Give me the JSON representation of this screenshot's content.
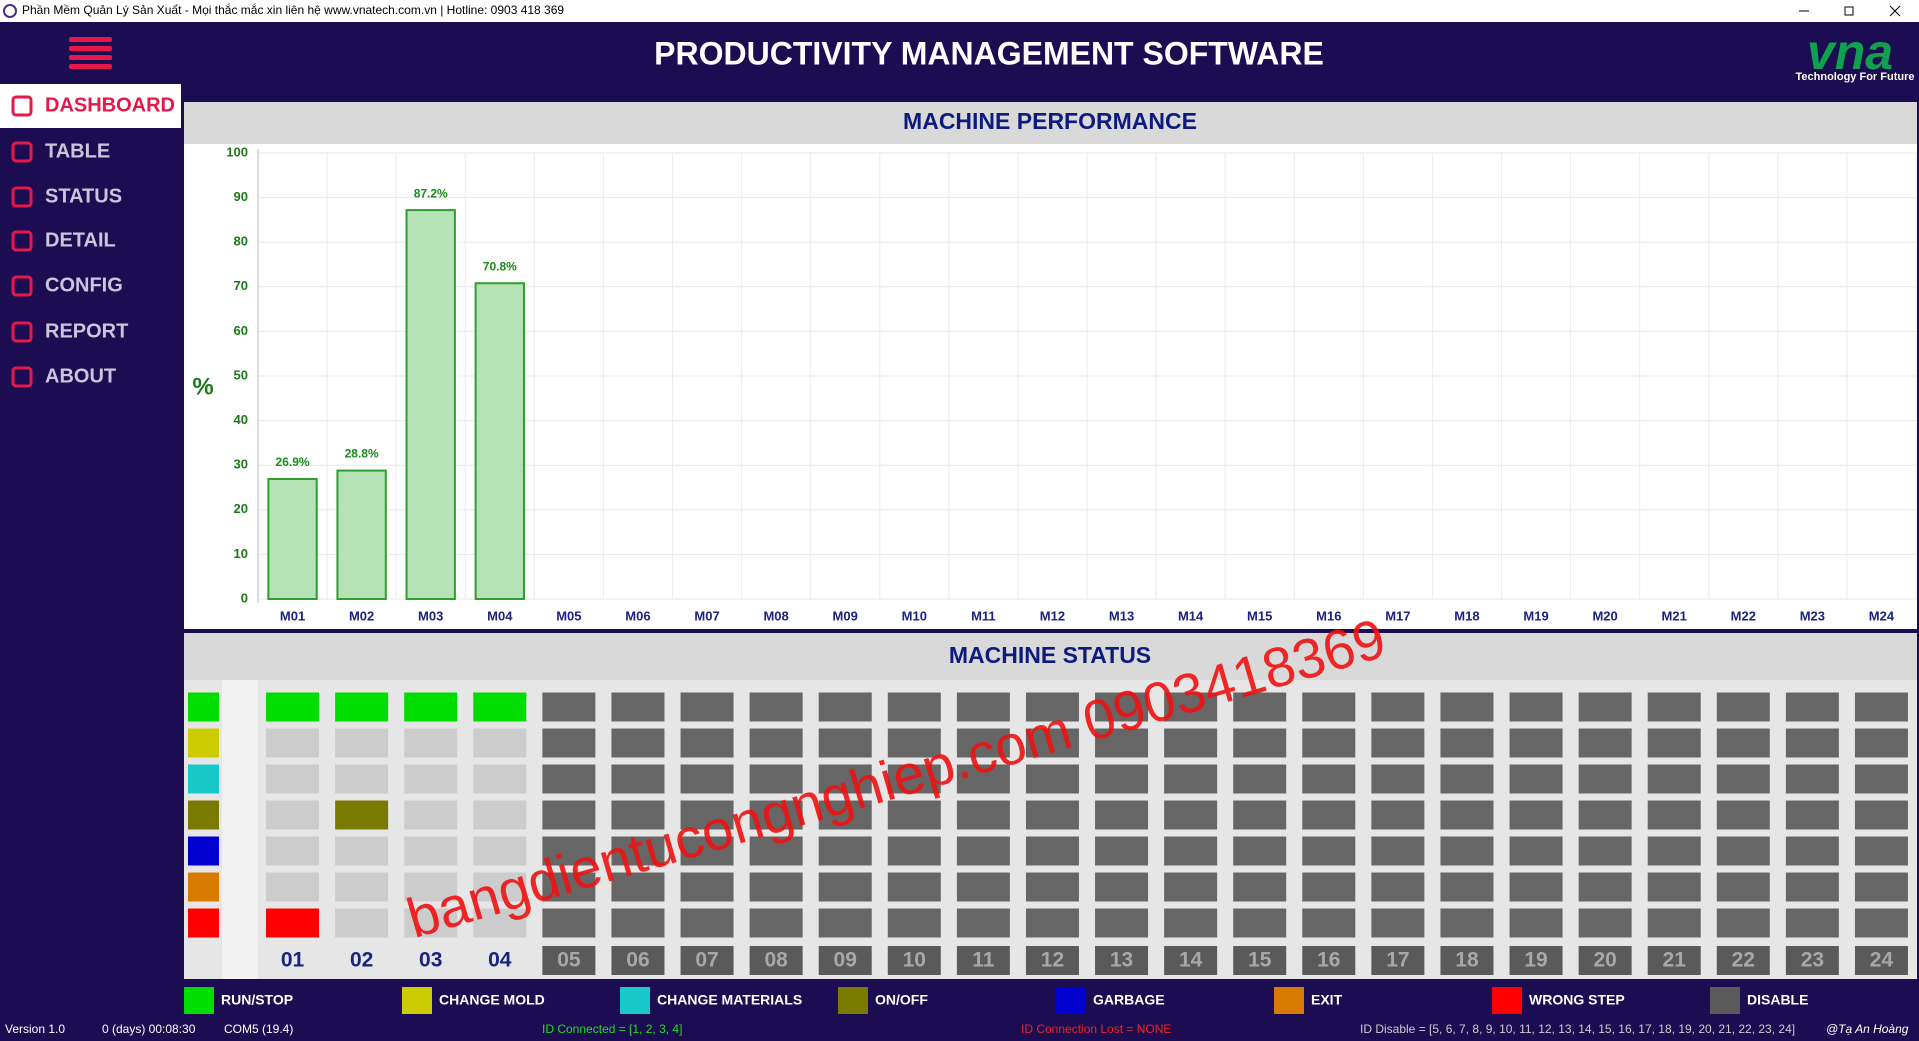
{
  "window": {
    "title": "Phần Mềm Quản Lý Sản Xuất - Mọi thắc mắc xin liên hệ www.vnatech.com.vn | Hotline: 0903 418 369"
  },
  "header": {
    "title": "PRODUCTIVITY MANAGEMENT SOFTWARE",
    "logo": "vna",
    "slogan": "Technology For Future"
  },
  "menu": {
    "items": [
      "DASHBOARD",
      "TABLE",
      "STATUS",
      "DETAIL",
      "CONFIG",
      "REPORT",
      "ABOUT"
    ]
  },
  "chart_data": {
    "type": "bar",
    "title": "MACHINE PERFORMANCE",
    "y_label": "%",
    "categories": [
      "M01",
      "M02",
      "M03",
      "M04",
      "M05",
      "M06",
      "M07",
      "M08",
      "M09",
      "M10",
      "M11",
      "M12",
      "M13",
      "M14",
      "M15",
      "M16",
      "M17",
      "M18",
      "M19",
      "M20",
      "M21",
      "M22",
      "M23",
      "M24"
    ],
    "values": [
      26.9,
      28.8,
      87.2,
      70.8,
      null,
      null,
      null,
      null,
      null,
      null,
      null,
      null,
      null,
      null,
      null,
      null,
      null,
      null,
      null,
      null,
      null,
      null,
      null,
      null
    ],
    "value_labels": [
      "26.9%",
      "28.8%",
      "87.2%",
      "70.8%",
      null,
      null,
      null,
      null,
      null,
      null,
      null,
      null,
      null,
      null,
      null,
      null,
      null,
      null,
      null,
      null,
      null,
      null,
      null,
      null
    ],
    "color": "#b5e3b5",
    "edge_color": "#2e9e2e",
    "ylim": [
      0,
      100
    ],
    "yticks": [
      0,
      10,
      20,
      30,
      40,
      50,
      60,
      70,
      80,
      90,
      100
    ],
    "grid": true
  },
  "machine_status": {
    "title": "MACHINE STATUS",
    "machines": [
      {
        "label": "01",
        "enabled": true,
        "active": [
          0,
          6
        ]
      },
      {
        "label": "02",
        "enabled": true,
        "active": [
          0,
          3
        ]
      },
      {
        "label": "03",
        "enabled": true,
        "active": [
          0
        ]
      },
      {
        "label": "04",
        "enabled": true,
        "active": [
          0
        ]
      },
      {
        "label": "05",
        "enabled": false,
        "active": []
      },
      {
        "label": "06",
        "enabled": false,
        "active": []
      },
      {
        "label": "07",
        "enabled": false,
        "active": []
      },
      {
        "label": "08",
        "enabled": false,
        "active": []
      },
      {
        "label": "09",
        "enabled": false,
        "active": []
      },
      {
        "label": "10",
        "enabled": false,
        "active": []
      },
      {
        "label": "11",
        "enabled": false,
        "active": []
      },
      {
        "label": "12",
        "enabled": false,
        "active": []
      },
      {
        "label": "13",
        "enabled": false,
        "active": []
      },
      {
        "label": "14",
        "enabled": false,
        "active": []
      },
      {
        "label": "15",
        "enabled": false,
        "active": []
      },
      {
        "label": "16",
        "enabled": false,
        "active": []
      },
      {
        "label": "17",
        "enabled": false,
        "active": []
      },
      {
        "label": "18",
        "enabled": false,
        "active": []
      },
      {
        "label": "19",
        "enabled": false,
        "active": []
      },
      {
        "label": "20",
        "enabled": false,
        "active": []
      },
      {
        "label": "21",
        "enabled": false,
        "active": []
      },
      {
        "label": "22",
        "enabled": false,
        "active": []
      },
      {
        "label": "23",
        "enabled": false,
        "active": []
      },
      {
        "label": "24",
        "enabled": false,
        "active": []
      }
    ]
  },
  "legend": {
    "items": [
      {
        "name": "RUN/STOP",
        "color": "#00dd00"
      },
      {
        "name": "CHANGE MOLD",
        "color": "#cccc00"
      },
      {
        "name": "CHANGE MATERIALS",
        "color": "#19c8c8"
      },
      {
        "name": "ON/OFF",
        "color": "#7a7a00"
      },
      {
        "name": "GARBAGE",
        "color": "#0000d0"
      },
      {
        "name": "EXIT",
        "color": "#d97a00"
      },
      {
        "name": "WRONG STEP",
        "color": "#ff0000"
      },
      {
        "name": "DISABLE",
        "color": "#5a5a5a"
      }
    ]
  },
  "status_bar": {
    "version": "Version 1.0",
    "uptime": "0 (days) 00:08:30",
    "port": "COM5 (19.4)",
    "connected": "ID Connected = [1, 2, 3, 4]",
    "lost": "ID Connection Lost = NONE",
    "disabled": "ID Disable = [5, 6, 7, 8, 9, 10, 11, 12, 13, 14, 15, 16, 17, 18, 19, 20, 21, 22, 23, 24]",
    "author": "@Tạ An Hoàng"
  },
  "watermark": "bangdientucongnghiep.com 0903418369"
}
